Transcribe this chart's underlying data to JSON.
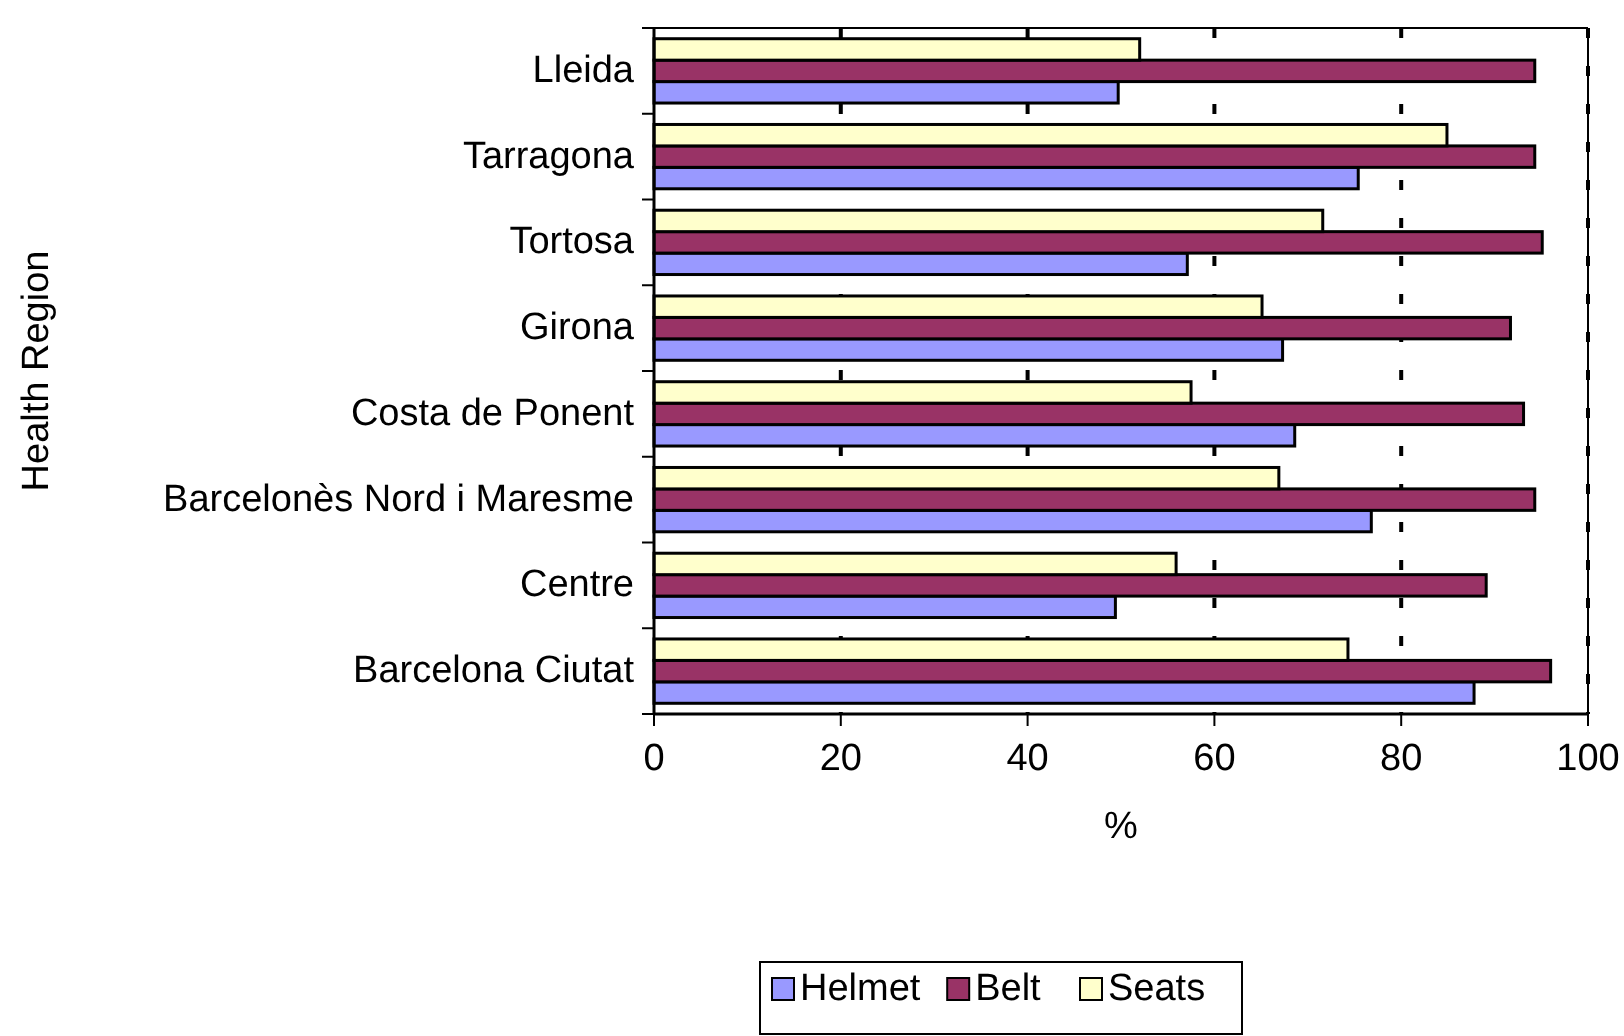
{
  "chart_data": {
    "type": "bar",
    "orientation": "horizontal",
    "xlabel": "%",
    "ylabel": "Health Region",
    "categories": [
      "Lleida",
      "Tarragona",
      "Tortosa",
      "Girona",
      "Costa de Ponent",
      "Barcelonès Nord i Maresme",
      "Centre",
      "Barcelona Ciutat"
    ],
    "series": [
      {
        "name": "Helmet",
        "color": "#9999ff",
        "values": [
          49.7,
          75.4,
          57.1,
          67.3,
          68.6,
          76.8,
          49.4,
          87.8
        ]
      },
      {
        "name": "Belt",
        "color": "#993366",
        "values": [
          94.3,
          94.3,
          95.1,
          91.7,
          93.1,
          94.3,
          89.1,
          96.0
        ]
      },
      {
        "name": "Seats",
        "color": "#ffffcc",
        "values": [
          52.0,
          84.9,
          71.6,
          65.1,
          57.5,
          66.9,
          55.9,
          74.3
        ]
      }
    ],
    "xlim": [
      0,
      100
    ],
    "xticks": [
      0,
      20,
      40,
      60,
      80,
      100
    ],
    "grid": "x",
    "legend": "bottom"
  }
}
